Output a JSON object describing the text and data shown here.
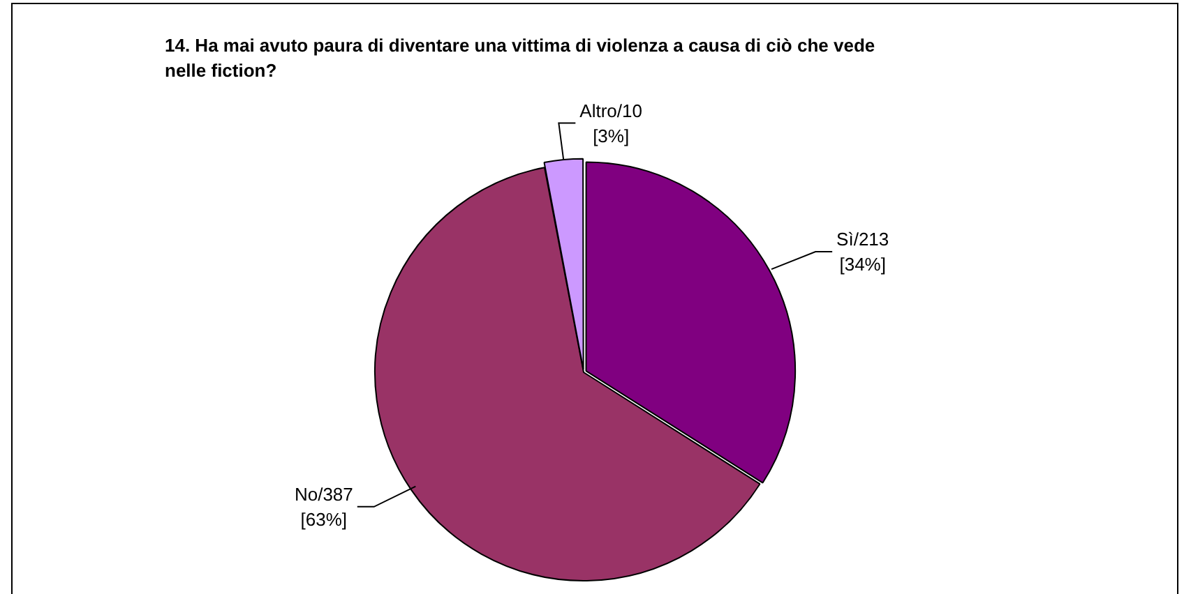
{
  "chart_data": {
    "type": "pie",
    "title": "14. Ha mai avuto paura di diventare una vittima di violenza a causa di ciò che vede nelle fiction?",
    "categories": [
      "Sì/213",
      "No/387",
      "Altro/10"
    ],
    "values": [
      34,
      63,
      3
    ],
    "value_labels": [
      "[34%]",
      "[63%]",
      "[3%]"
    ],
    "colors": [
      "#800080",
      "#993366",
      "#cc99ff"
    ],
    "legend": false
  }
}
